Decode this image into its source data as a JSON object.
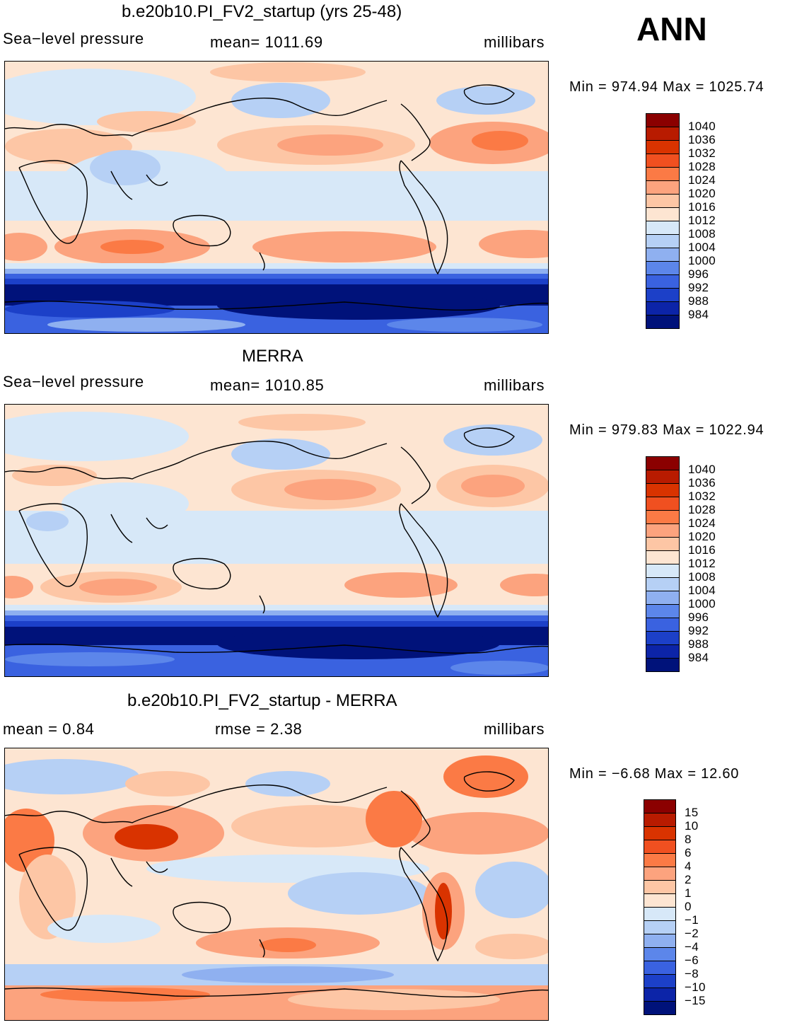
{
  "annual_label": "ANN",
  "panels": [
    {
      "title": "b.e20b10.PI_FV2_startup (yrs 25-48)",
      "variable": "Sea−level pressure",
      "mean_text": "mean=  1011.69",
      "units": "millibars",
      "minmax": "Min  =  974.94  Max  =  1025.74",
      "colorbar": [
        "1040",
        "1036",
        "1032",
        "1028",
        "1024",
        "1020",
        "1016",
        "1012",
        "1008",
        "1004",
        "1000",
        "996",
        "992",
        "988",
        "984"
      ]
    },
    {
      "title": "MERRA",
      "variable": "Sea−level pressure",
      "mean_text": "mean=  1010.85",
      "units": "millibars",
      "minmax": "Min  =  979.83  Max  =  1022.94",
      "colorbar": [
        "1040",
        "1036",
        "1032",
        "1028",
        "1024",
        "1020",
        "1016",
        "1012",
        "1008",
        "1004",
        "1000",
        "996",
        "992",
        "988",
        "984"
      ]
    },
    {
      "title": "b.e20b10.PI_FV2_startup - MERRA",
      "mean_text": "mean  =      0.84",
      "rmse_text": "rmse  =      2.38",
      "units": "millibars",
      "minmax": "Min  =    −6.68  Max  =      12.60",
      "colorbar": [
        "15",
        "10",
        "8",
        "6",
        "4",
        "2",
        "1",
        "0",
        "−1",
        "−2",
        "−4",
        "−6",
        "−8",
        "−10",
        "−15"
      ]
    }
  ],
  "colors": {
    "abs_scale": [
      "#8b0000",
      "#b81b00",
      "#d93300",
      "#f05020",
      "#fb7a45",
      "#fca37e",
      "#fdc6a5",
      "#fde5d2",
      "#d7e8f8",
      "#b6d0f5",
      "#8fb0f0",
      "#5c86ea",
      "#3a62e0",
      "#1c40c8",
      "#0c24a8",
      "#00127a"
    ],
    "diff_scale": [
      "#8b0000",
      "#b81b00",
      "#d93300",
      "#f05020",
      "#fb7a45",
      "#fca37e",
      "#fdc6a5",
      "#fde5d2",
      "#d7e8f8",
      "#b6d0f5",
      "#8fb0f0",
      "#5c86ea",
      "#3a62e0",
      "#1c40c8",
      "#0c24a8",
      "#00127a"
    ]
  }
}
